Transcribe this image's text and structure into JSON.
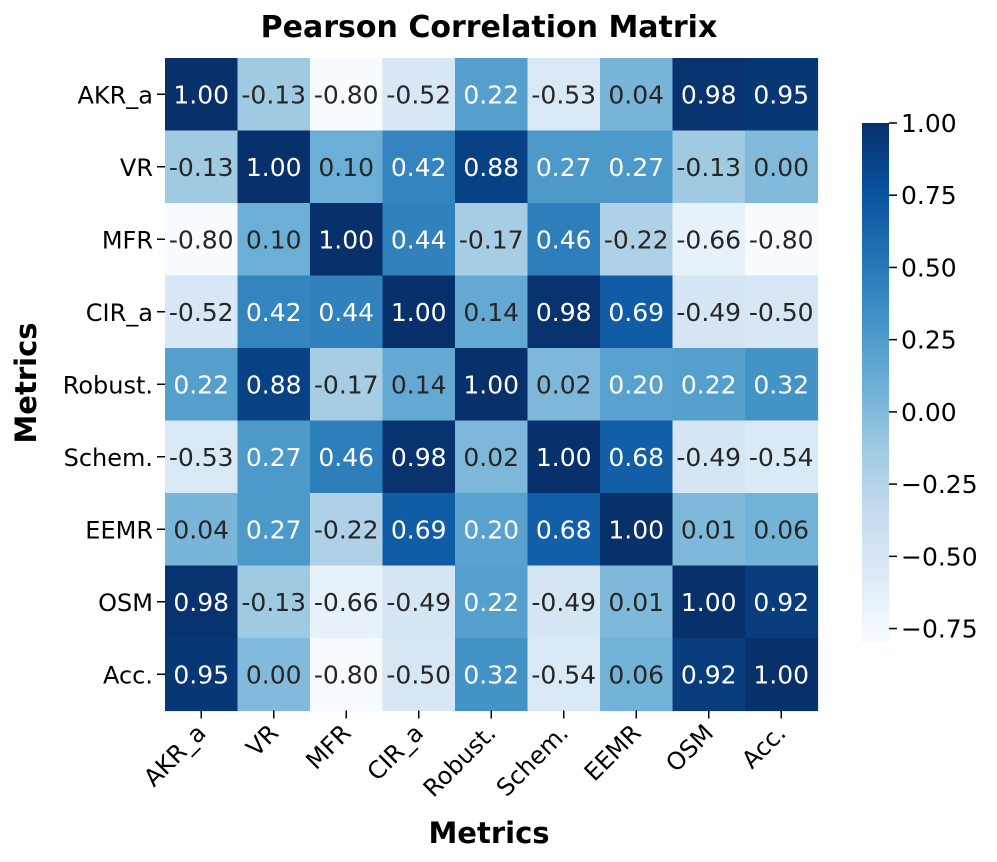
{
  "chart_data": {
    "type": "heatmap",
    "title": "Pearson Correlation Matrix",
    "xlabel": "Metrics",
    "ylabel": "Metrics",
    "x_categories": [
      "AKR_a",
      "VR",
      "MFR",
      "CIR_a",
      "Robust.",
      "Schem.",
      "EEMR",
      "OSM",
      "Acc."
    ],
    "y_categories": [
      "AKR_a",
      "VR",
      "MFR",
      "CIR_a",
      "Robust.",
      "Schem.",
      "EEMR",
      "OSM",
      "Acc."
    ],
    "values": [
      [
        1.0,
        -0.13,
        -0.8,
        -0.52,
        0.22,
        -0.53,
        0.04,
        0.98,
        0.95
      ],
      [
        -0.13,
        1.0,
        0.1,
        0.42,
        0.88,
        0.27,
        0.27,
        -0.13,
        0.0
      ],
      [
        -0.8,
        0.1,
        1.0,
        0.44,
        -0.17,
        0.46,
        -0.22,
        -0.66,
        -0.8
      ],
      [
        -0.52,
        0.42,
        0.44,
        1.0,
        0.14,
        0.98,
        0.69,
        -0.49,
        -0.5
      ],
      [
        0.22,
        0.88,
        -0.17,
        0.14,
        1.0,
        0.02,
        0.2,
        0.22,
        0.32
      ],
      [
        -0.53,
        0.27,
        0.46,
        0.98,
        0.02,
        1.0,
        0.68,
        -0.49,
        -0.54
      ],
      [
        0.04,
        0.27,
        -0.22,
        0.69,
        0.2,
        0.68,
        1.0,
        0.01,
        0.06
      ],
      [
        0.98,
        -0.13,
        -0.66,
        -0.49,
        0.22,
        -0.49,
        0.01,
        1.0,
        0.92
      ],
      [
        0.95,
        0.0,
        -0.8,
        -0.5,
        0.32,
        -0.54,
        0.06,
        0.92,
        1.0
      ]
    ],
    "colormap": "Blues",
    "vmin": -0.8,
    "vmax": 1.0,
    "colorbar_ticks": [
      "1.00",
      "0.75",
      "0.50",
      "0.25",
      "0.00",
      "−0.25",
      "−0.50",
      "−0.75"
    ],
    "colorbar_tick_values": [
      1.0,
      0.75,
      0.5,
      0.25,
      0.0,
      -0.25,
      -0.5,
      -0.75
    ],
    "annot_format": "0.00"
  }
}
